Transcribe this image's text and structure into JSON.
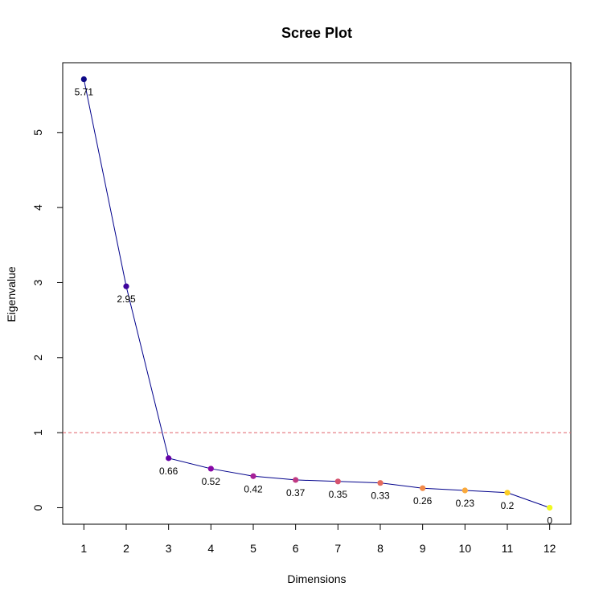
{
  "chart_data": {
    "type": "line",
    "title": "Scree Plot",
    "xlabel": "Dimensions",
    "ylabel": "Eigenvalue",
    "x": [
      1,
      2,
      3,
      4,
      5,
      6,
      7,
      8,
      9,
      10,
      11,
      12
    ],
    "xlim": [
      0.5,
      12.5
    ],
    "ylim": [
      -0.22,
      5.93
    ],
    "xticks": [
      1,
      2,
      3,
      4,
      5,
      6,
      7,
      8,
      9,
      10,
      11,
      12
    ],
    "yticks": [
      0,
      1,
      2,
      3,
      4,
      5
    ],
    "series": [
      {
        "values": [
          5.71,
          2.95,
          0.66,
          0.52,
          0.42,
          0.37,
          0.35,
          0.33,
          0.26,
          0.23,
          0.2,
          0
        ],
        "labels": [
          "5.71",
          "2.95",
          "0.66",
          "0.52",
          "0.42",
          "0.37",
          "0.35",
          "0.33",
          "0.26",
          "0.23",
          "0.2",
          "0"
        ],
        "line_color": "#00008B",
        "point_colors": [
          "#0D0887",
          "#3E049C",
          "#6300A7",
          "#8707A6",
          "#A62098",
          "#C03A83",
          "#D5536F",
          "#E56B5D",
          "#F28A49",
          "#FAA93B",
          "#FCCD25",
          "#F0F921"
        ]
      }
    ],
    "reference_line": {
      "y": 1,
      "color": "#E0606A",
      "style": "dashed"
    },
    "grid": false,
    "legend": "none"
  }
}
